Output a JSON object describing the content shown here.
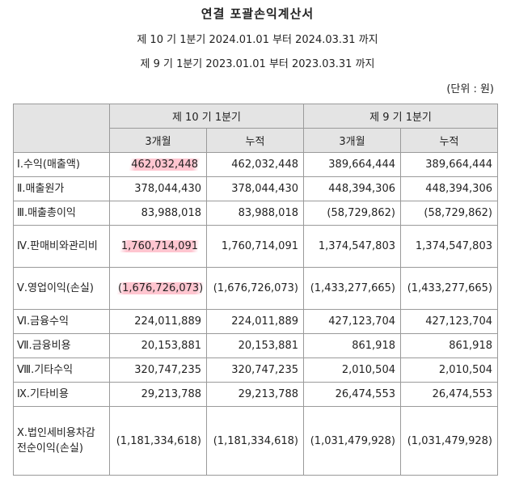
{
  "title": "연결 포괄손익계산서",
  "period_current": "제 10 기 1분기 2024.01.01 부터 2024.03.31 까지",
  "period_prior": "제 9 기 1분기 2023.01.01 부터 2023.03.31 까지",
  "unit": "(단위 : 원)",
  "columns": {
    "current": "제 10 기 1분기",
    "prior": "제 9 기 1분기",
    "three_month": "3개월",
    "cumulative": "누적"
  },
  "rows": [
    {
      "label": "Ⅰ.수익(매출액)",
      "values": [
        "462,032,448",
        "462,032,448",
        "389,664,444",
        "389,664,444"
      ]
    },
    {
      "label": "Ⅱ.매출원가",
      "values": [
        "378,044,430",
        "378,044,430",
        "448,394,306",
        "448,394,306"
      ]
    },
    {
      "label": "Ⅲ.매출총이익",
      "values": [
        "83,988,018",
        "83,988,018",
        "(58,729,862)",
        "(58,729,862)"
      ]
    },
    {
      "label": "Ⅳ.판매비와관리비",
      "values": [
        "1,760,714,091",
        "1,760,714,091",
        "1,374,547,803",
        "1,374,547,803"
      ]
    },
    {
      "label": "Ⅴ.영업이익(손실)",
      "values": [
        "(1,676,726,073)",
        "(1,676,726,073)",
        "(1,433,277,665)",
        "(1,433,277,665)"
      ]
    },
    {
      "label": "Ⅵ.금융수익",
      "values": [
        "224,011,889",
        "224,011,889",
        "427,123,704",
        "427,123,704"
      ]
    },
    {
      "label": "Ⅶ.금융비용",
      "values": [
        "20,153,881",
        "20,153,881",
        "861,918",
        "861,918"
      ]
    },
    {
      "label": "Ⅷ.기타수익",
      "values": [
        "320,747,235",
        "320,747,235",
        "2,010,504",
        "2,010,504"
      ]
    },
    {
      "label": "Ⅸ.기타비용",
      "values": [
        "29,213,788",
        "29,213,788",
        "26,474,553",
        "26,474,553"
      ]
    },
    {
      "label": "Ⅹ.법인세비용차감전순이익(손실)",
      "values": [
        "(1,181,334,618)",
        "(1,181,334,618)",
        "(1,031,479,928)",
        "(1,031,479,928)"
      ]
    }
  ],
  "highlight_color": "#ff96aa"
}
